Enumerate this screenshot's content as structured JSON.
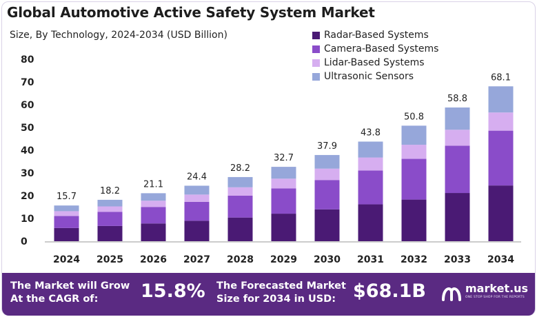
{
  "chart_data": {
    "type": "bar",
    "stacked": true,
    "title": "Global Automotive Active Safety System Market",
    "subtitle": "Size, By Technology, 2024-2034 (USD Billion)",
    "categories": [
      "2024",
      "2025",
      "2026",
      "2027",
      "2028",
      "2029",
      "2030",
      "2031",
      "2032",
      "2033",
      "2034"
    ],
    "totals": [
      15.7,
      18.2,
      21.1,
      24.4,
      28.2,
      32.7,
      37.9,
      43.8,
      50.8,
      58.8,
      68.1
    ],
    "total_labels": [
      "15.7",
      "18.2",
      "21.1",
      "24.4",
      "28.2",
      "32.7",
      "37.9",
      "43.8",
      "50.8",
      "58.8",
      "68.1"
    ],
    "series": [
      {
        "name": "Radar-Based Systems",
        "color": "#4a1a74",
        "values": [
          5.8,
          6.7,
          7.8,
          9.0,
          10.4,
          12.1,
          14.0,
          16.2,
          18.3,
          21.2,
          24.5
        ]
      },
      {
        "name": "Camera-Based Systems",
        "color": "#8a4cc9",
        "values": [
          5.3,
          6.2,
          7.2,
          8.3,
          9.6,
          11.1,
          12.9,
          14.9,
          17.9,
          20.8,
          24.1
        ]
      },
      {
        "name": "Lidar-Based Systems",
        "color": "#d6aef0",
        "values": [
          2.1,
          2.4,
          2.8,
          3.2,
          3.7,
          4.3,
          5.0,
          5.7,
          6.2,
          7.0,
          8.0
        ]
      },
      {
        "name": "Ultrasonic Sensors",
        "color": "#96a7da",
        "values": [
          2.5,
          2.9,
          3.3,
          3.9,
          4.5,
          5.2,
          6.0,
          7.0,
          8.4,
          9.8,
          11.5
        ]
      }
    ],
    "y_ticks": [
      "0",
      "10",
      "20",
      "30",
      "40",
      "50",
      "60",
      "70",
      "80"
    ],
    "ylim": [
      0,
      80
    ],
    "grid": false,
    "legend_position": "top-right"
  },
  "banner": {
    "cagr_label_line1": "The Market will Grow",
    "cagr_label_line2": "At the CAGR of:",
    "cagr_value": "15.8%",
    "forecast_label_line1": "The Forecasted Market",
    "forecast_label_line2": "Size for 2034 in USD:",
    "forecast_value": "$68.1B",
    "logo_text": "market.us",
    "logo_tagline": "ONE STOP SHOP FOR THE REPORTS"
  }
}
